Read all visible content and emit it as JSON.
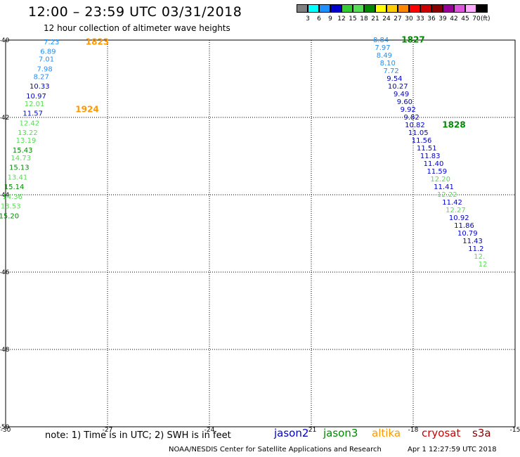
{
  "title": "12:00 – 23:59 UTC 03/31/2018",
  "subtitle": "12 hour collection of altimeter wave heights",
  "colorbar": {
    "labels": [
      "3",
      "6",
      "9",
      "12",
      "15",
      "18",
      "21",
      "24",
      "27",
      "30",
      "33",
      "36",
      "39",
      "42",
      "45",
      "70"
    ],
    "unit": "(ft)",
    "colors": [
      "#7f7f7f",
      "#00ffff",
      "#1e90ff",
      "#0000cd",
      "#33cc33",
      "#55dd55",
      "#008800",
      "#ffff00",
      "#ffcc00",
      "#ff8800",
      "#ff0000",
      "#cc0000",
      "#880000",
      "#990099",
      "#dd55dd",
      "#ffaaff",
      "#000000"
    ]
  },
  "note": "note: 1) Time is in UTC; 2) SWH is in feet",
  "legend": [
    {
      "label": "jason2",
      "color": "#0000cd"
    },
    {
      "label": "jason3",
      "color": "#008800"
    },
    {
      "label": "altika",
      "color": "#ff9900"
    },
    {
      "label": "cryosat",
      "color": "#cc0000"
    },
    {
      "label": "s3a",
      "color": "#880000"
    }
  ],
  "footer": "NOAA/NESDIS Center for Satellite Applications and Research",
  "footer_time": "Apr  1 12:27:59 UTC 2018",
  "chart_data": {
    "type": "scatter",
    "title": "12:00 – 23:59 UTC 03/31/2018",
    "xlabel": "",
    "ylabel": "",
    "xlim": [
      -30,
      -15
    ],
    "ylim": [
      -50,
      -40
    ],
    "x_ticks": [
      -30,
      -27,
      -24,
      -21,
      -18,
      -15
    ],
    "y_ticks": [
      -40,
      -42,
      -44,
      -46,
      -48,
      -50
    ],
    "x_tick_labels": [
      "-30",
      "-27",
      "-24",
      "-21",
      "-18",
      "-15"
    ],
    "y_tick_labels": [
      "-40",
      "-42",
      "-44",
      "-46",
      "-48",
      "-50"
    ],
    "grid": true,
    "time_labels": [
      {
        "text": "1823",
        "x": -27.3,
        "y": -40.05,
        "color": "#ff9900"
      },
      {
        "text": "1924",
        "x": -27.6,
        "y": -41.8,
        "color": "#ff9900"
      },
      {
        "text": "1827",
        "x": -18.0,
        "y": -40.0,
        "color": "#008800"
      },
      {
        "text": "1828",
        "x": -16.8,
        "y": -42.2,
        "color": "#008800"
      }
    ],
    "series": [
      {
        "name": "altika",
        "points": [
          {
            "x": -28.65,
            "y": -40.05,
            "v": "7.23",
            "c": "#1e90ff"
          },
          {
            "x": -28.75,
            "y": -40.3,
            "v": "6.89",
            "c": "#1e90ff"
          },
          {
            "x": -28.8,
            "y": -40.5,
            "v": "7.01",
            "c": "#1e90ff"
          },
          {
            "x": -28.85,
            "y": -40.75,
            "v": "7.98",
            "c": "#1e90ff"
          },
          {
            "x": -28.95,
            "y": -40.95,
            "v": "8.27",
            "c": "#1e90ff"
          },
          {
            "x": -29.0,
            "y": -41.2,
            "v": "10.33",
            "c": "#0000cd"
          },
          {
            "x": -29.1,
            "y": -41.45,
            "v": "10.97",
            "c": "#0000cd"
          },
          {
            "x": -29.15,
            "y": -41.65,
            "v": "12.01",
            "c": "#55dd55"
          },
          {
            "x": -29.2,
            "y": -41.9,
            "v": "11.57",
            "c": "#0000cd"
          },
          {
            "x": -29.3,
            "y": -42.15,
            "v": "12.42",
            "c": "#55dd55"
          },
          {
            "x": -29.35,
            "y": -42.4,
            "v": "13.22",
            "c": "#55dd55"
          },
          {
            "x": -29.4,
            "y": -42.6,
            "v": "13.19",
            "c": "#55dd55"
          },
          {
            "x": -29.5,
            "y": -42.85,
            "v": "15.43",
            "c": "#008800"
          },
          {
            "x": -29.55,
            "y": -43.05,
            "v": "14.73",
            "c": "#55dd55"
          },
          {
            "x": -29.6,
            "y": -43.3,
            "v": "15.13",
            "c": "#008800"
          },
          {
            "x": -29.65,
            "y": -43.55,
            "v": "13.41",
            "c": "#55dd55"
          },
          {
            "x": -29.75,
            "y": -43.8,
            "v": "15.14",
            "c": "#008800"
          },
          {
            "x": -29.8,
            "y": -44.05,
            "v": "14.36",
            "c": "#55dd55"
          },
          {
            "x": -29.85,
            "y": -44.3,
            "v": "13.53",
            "c": "#55dd55"
          },
          {
            "x": -29.9,
            "y": -44.55,
            "v": "15.20",
            "c": "#008800"
          }
        ]
      },
      {
        "name": "jason3",
        "points": [
          {
            "x": -18.95,
            "y": -40.0,
            "v": "8.84",
            "c": "#1e90ff"
          },
          {
            "x": -18.9,
            "y": -40.2,
            "v": "7.97",
            "c": "#1e90ff"
          },
          {
            "x": -18.85,
            "y": -40.4,
            "v": "8.49",
            "c": "#1e90ff"
          },
          {
            "x": -18.75,
            "y": -40.6,
            "v": "8.10",
            "c": "#1e90ff"
          },
          {
            "x": -18.65,
            "y": -40.8,
            "v": "7.72",
            "c": "#1e90ff"
          },
          {
            "x": -18.55,
            "y": -41.0,
            "v": "9.54",
            "c": "#0000cd"
          },
          {
            "x": -18.45,
            "y": -41.2,
            "v": "10.27",
            "c": "#0000cd"
          },
          {
            "x": -18.35,
            "y": -41.4,
            "v": "9.49",
            "c": "#0000cd"
          },
          {
            "x": -18.25,
            "y": -41.6,
            "v": "9.60",
            "c": "#0000cd"
          },
          {
            "x": -18.15,
            "y": -41.8,
            "v": "9.92",
            "c": "#0000cd"
          },
          {
            "x": -18.05,
            "y": -42.0,
            "v": "9.82",
            "c": "#0000cd"
          },
          {
            "x": -17.95,
            "y": -42.2,
            "v": "10.82",
            "c": "#0000cd"
          },
          {
            "x": -17.85,
            "y": -42.4,
            "v": "11.05",
            "c": "#0000cd"
          },
          {
            "x": -17.75,
            "y": -42.6,
            "v": "11.56",
            "c": "#0000cd"
          },
          {
            "x": -17.6,
            "y": -42.8,
            "v": "11.51",
            "c": "#0000cd"
          },
          {
            "x": -17.5,
            "y": -43.0,
            "v": "11.83",
            "c": "#0000cd"
          },
          {
            "x": -17.4,
            "y": -43.2,
            "v": "11.40",
            "c": "#0000cd"
          },
          {
            "x": -17.3,
            "y": -43.4,
            "v": "11.59",
            "c": "#0000cd"
          },
          {
            "x": -17.2,
            "y": -43.6,
            "v": "12.20",
            "c": "#55dd55"
          },
          {
            "x": -17.1,
            "y": -43.8,
            "v": "11.41",
            "c": "#0000cd"
          },
          {
            "x": -17.0,
            "y": -44.0,
            "v": "12.22",
            "c": "#55dd55"
          },
          {
            "x": -16.85,
            "y": -44.2,
            "v": "11.42",
            "c": "#0000cd"
          },
          {
            "x": -16.75,
            "y": -44.4,
            "v": "12.27",
            "c": "#55dd55"
          },
          {
            "x": -16.65,
            "y": -44.6,
            "v": "10.92",
            "c": "#0000cd"
          },
          {
            "x": -16.5,
            "y": -44.8,
            "v": "11.86",
            "c": "#0000cd"
          },
          {
            "x": -16.4,
            "y": -45.0,
            "v": "10.79",
            "c": "#0000cd"
          },
          {
            "x": -16.25,
            "y": -45.2,
            "v": "11.43",
            "c": "#0000cd"
          },
          {
            "x": -16.15,
            "y": -45.4,
            "v": "11.2",
            "c": "#0000cd"
          },
          {
            "x": -16.05,
            "y": -45.6,
            "v": "12.",
            "c": "#55dd55"
          },
          {
            "x": -15.95,
            "y": -45.8,
            "v": "12",
            "c": "#55dd55"
          }
        ]
      }
    ]
  }
}
